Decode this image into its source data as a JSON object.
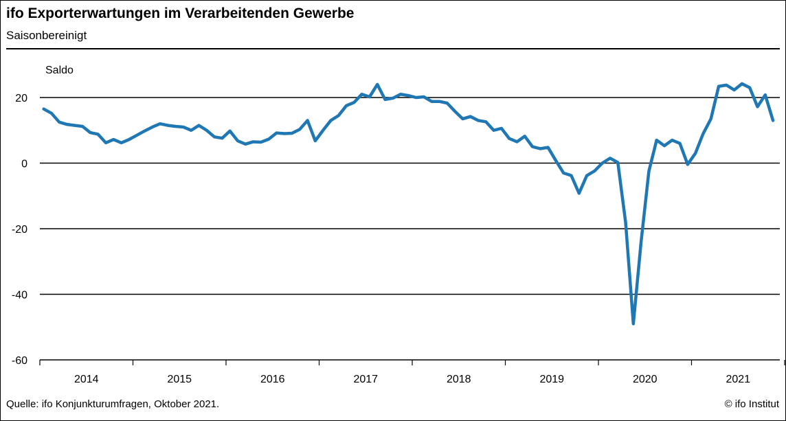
{
  "header": {
    "title": "ifo Exporterwartungen im Verarbeitenden Gewerbe",
    "subtitle": "Saisonbereinigt"
  },
  "footer": {
    "source": "Quelle: ifo Konjunkturumfragen,   Oktober 2021.",
    "copyright": "© ifo Institut"
  },
  "colors": {
    "line": "#1f77b4",
    "grid": "#000000"
  },
  "chart_data": {
    "type": "line",
    "ylabel": "Saldo",
    "xlabel": "",
    "ylim": [
      -60,
      30
    ],
    "yticks": [
      -60,
      -40,
      -20,
      0,
      20
    ],
    "grid": true,
    "year_labels": [
      "2014",
      "2015",
      "2016",
      "2017",
      "2018",
      "2019",
      "2020",
      "2021"
    ],
    "x_start": "2014-01",
    "x_end": "2021-10",
    "series": [
      {
        "values": [
          16.5,
          15.2,
          12.5,
          11.8,
          11.5,
          11.2,
          9.3,
          8.8,
          6.2,
          7.2,
          6.2,
          7.2,
          8.5,
          9.8,
          11.0,
          12.0,
          11.5,
          11.2,
          11.0,
          10.0,
          11.5,
          10.0,
          8.0,
          7.6,
          9.8,
          6.8,
          5.8,
          6.5,
          6.4,
          7.3,
          9.2,
          9.0,
          9.1,
          10.3,
          13.0,
          6.8,
          10.0,
          13.0,
          14.5,
          17.5,
          18.5,
          21.0,
          20.2,
          24.0,
          19.4,
          19.8,
          21.0,
          20.6,
          20.0,
          20.2,
          18.8,
          18.8,
          18.3,
          15.8,
          13.5,
          14.2,
          13.0,
          12.6,
          10.0,
          10.6,
          7.5,
          6.5,
          8.2,
          5.0,
          4.4,
          4.8,
          0.8,
          -3.0,
          -3.8,
          -9.2,
          -3.8,
          -2.4,
          0.0,
          1.5,
          0.2,
          -18.0,
          -49.0,
          -24.0,
          -2.5,
          7.0,
          5.3,
          7.0,
          6.0,
          -0.4,
          3.0,
          9.0,
          13.5,
          23.4,
          23.8,
          22.3,
          24.2,
          23.0,
          17.2,
          20.8,
          13.0
        ]
      }
    ]
  }
}
